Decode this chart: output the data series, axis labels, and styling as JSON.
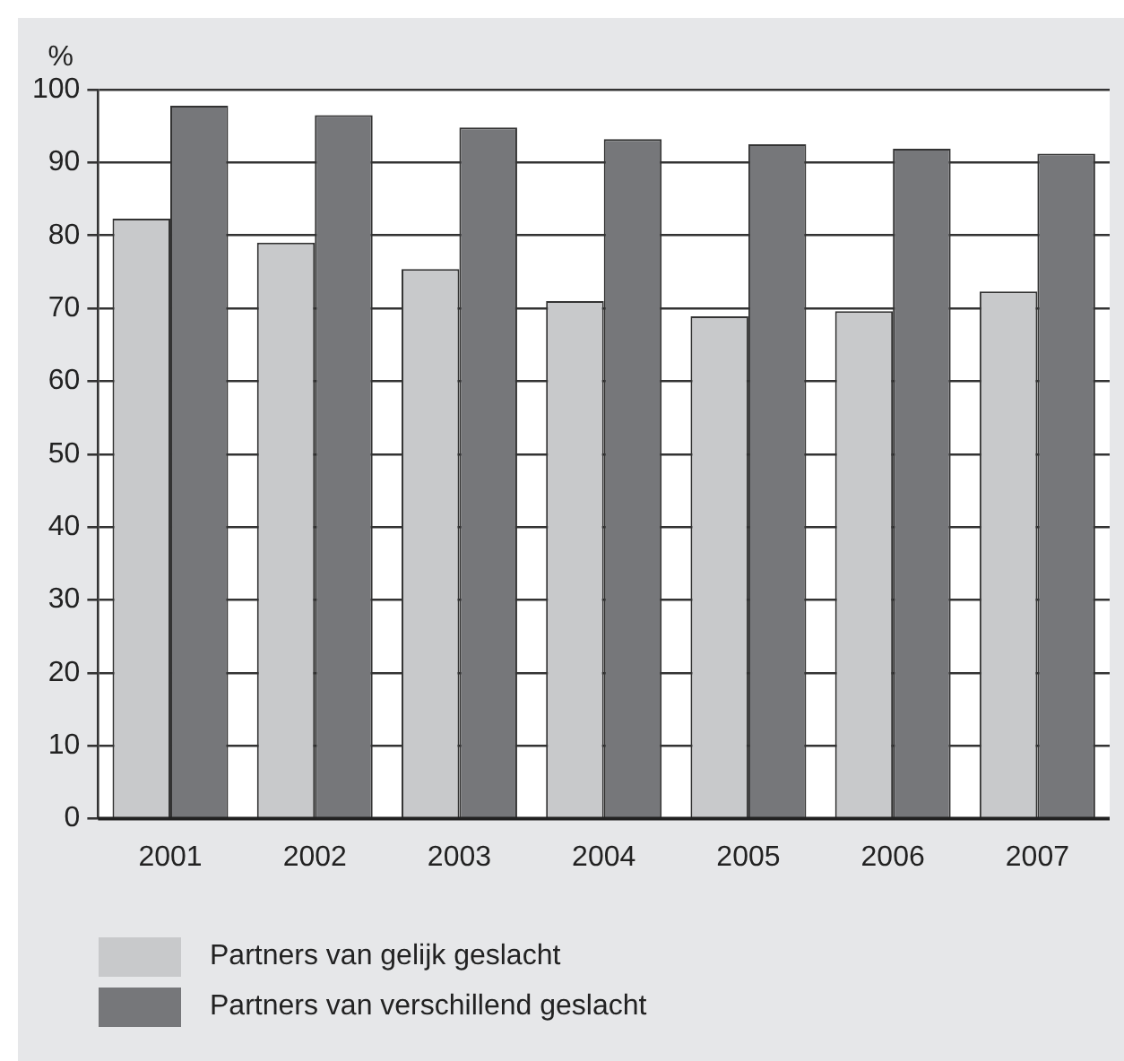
{
  "chart_data": {
    "type": "bar",
    "ylabel": "%",
    "categories": [
      "2001",
      "2002",
      "2003",
      "2004",
      "2005",
      "2006",
      "2007"
    ],
    "series": [
      {
        "name": "Partners van gelijk geslacht",
        "color": "#c8c9cb",
        "values": [
          82.3,
          79.0,
          75.4,
          71.0,
          68.9,
          69.6,
          72.3
        ]
      },
      {
        "name": "Partners van verschillend geslacht",
        "color": "#76777a",
        "values": [
          97.8,
          96.5,
          94.8,
          93.2,
          92.5,
          91.9,
          91.2
        ]
      }
    ],
    "ylim": [
      0,
      100
    ],
    "yticks": [
      0,
      10,
      20,
      30,
      40,
      50,
      60,
      70,
      80,
      90,
      100
    ],
    "grid": "y",
    "legend": "bottom left"
  }
}
